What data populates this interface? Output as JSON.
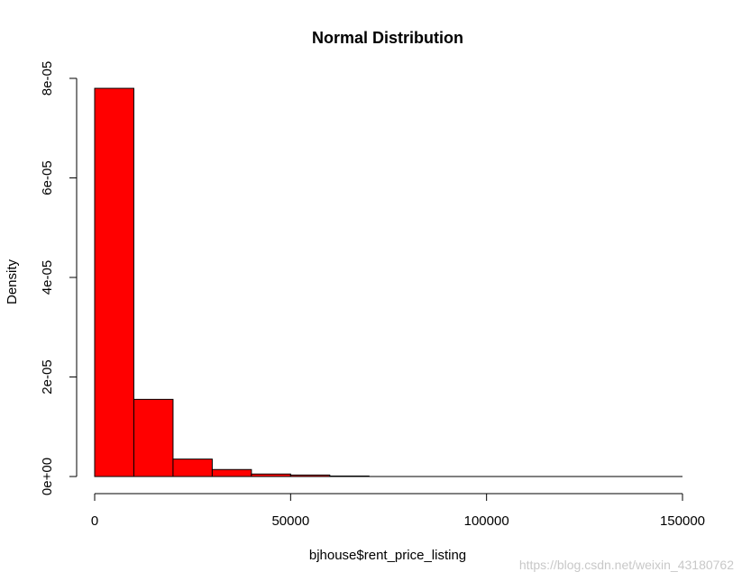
{
  "chart_data": {
    "type": "bar",
    "title": "Normal Distribution",
    "xlabel": "bjhouse$rent_price_listing",
    "ylabel": "Density",
    "xlim": [
      0,
      150000
    ],
    "ylim": [
      0,
      8e-05
    ],
    "x_ticks": [
      0,
      50000,
      100000,
      150000
    ],
    "x_tick_labels": [
      "0",
      "50000",
      "100000",
      "150000"
    ],
    "y_ticks": [
      0,
      2e-05,
      4e-05,
      6e-05,
      8e-05
    ],
    "y_tick_labels": [
      "0e+00",
      "2e-05",
      "4e-05",
      "6e-05",
      "8e-05"
    ],
    "bins": [
      {
        "from": 0,
        "to": 10000,
        "density": 7.8e-05
      },
      {
        "from": 10000,
        "to": 20000,
        "density": 1.55e-05
      },
      {
        "from": 20000,
        "to": 30000,
        "density": 3.5e-06
      },
      {
        "from": 30000,
        "to": 40000,
        "density": 1.4e-06
      },
      {
        "from": 40000,
        "to": 50000,
        "density": 5e-07
      },
      {
        "from": 50000,
        "to": 60000,
        "density": 3e-07
      },
      {
        "from": 60000,
        "to": 70000,
        "density": 1e-07
      },
      {
        "from": 70000,
        "to": 80000,
        "density": 0
      },
      {
        "from": 80000,
        "to": 90000,
        "density": 0
      },
      {
        "from": 90000,
        "to": 100000,
        "density": 0
      },
      {
        "from": 100000,
        "to": 110000,
        "density": 0
      },
      {
        "from": 110000,
        "to": 120000,
        "density": 0
      },
      {
        "from": 120000,
        "to": 130000,
        "density": 0
      },
      {
        "from": 130000,
        "to": 140000,
        "density": 0
      },
      {
        "from": 140000,
        "to": 150000,
        "density": 0
      }
    ],
    "bar_color": "#ff0000",
    "border_color": "#000000",
    "grid": false,
    "legend": "none"
  },
  "watermark": "https://blog.csdn.net/weixin_43180762"
}
